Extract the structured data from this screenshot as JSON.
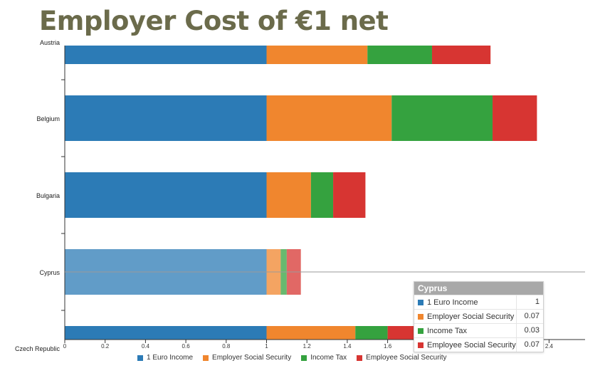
{
  "title": "Employer Cost of €1 net",
  "chart_data": {
    "type": "bar",
    "orientation": "horizontal",
    "stacked": true,
    "categories": [
      "Austria",
      "Belgium",
      "Bulgaria",
      "Cyprus",
      "Czech Republic"
    ],
    "series": [
      {
        "name": "1 Euro Income",
        "color": "#2c7bb6",
        "values": [
          1,
          1,
          1,
          1,
          1
        ]
      },
      {
        "name": "Employer Social Security",
        "color": "#f0862e",
        "values": [
          0.5,
          0.62,
          0.22,
          0.07,
          0.44
        ]
      },
      {
        "name": "Income Tax",
        "color": "#35a23f",
        "values": [
          0.32,
          0.5,
          0.11,
          0.03,
          0.16
        ]
      },
      {
        "name": "Employee Social Security",
        "color": "#d73532",
        "values": [
          0.29,
          0.22,
          0.16,
          0.07,
          0.3
        ]
      }
    ],
    "xlim": [
      0,
      2.5
    ],
    "xticks": [
      "0",
      "0.2",
      "0.4",
      "0.6",
      "0.8",
      "1",
      "1.2",
      "1.4",
      "1.6",
      "1.8",
      "2",
      "2.2",
      "2.4"
    ],
    "highlighted_category": "Cyprus",
    "legend_position": "bottom"
  },
  "tooltip": {
    "title": "Cyprus",
    "rows": [
      {
        "name": "1 Euro Income",
        "value": "1",
        "color": "#2c7bb6"
      },
      {
        "name": "Employer Social Security",
        "value": "0.07",
        "color": "#f0862e"
      },
      {
        "name": "Income Tax",
        "value": "0.03",
        "color": "#35a23f"
      },
      {
        "name": "Employee Social Security",
        "value": "0.07",
        "color": "#d73532"
      }
    ]
  }
}
